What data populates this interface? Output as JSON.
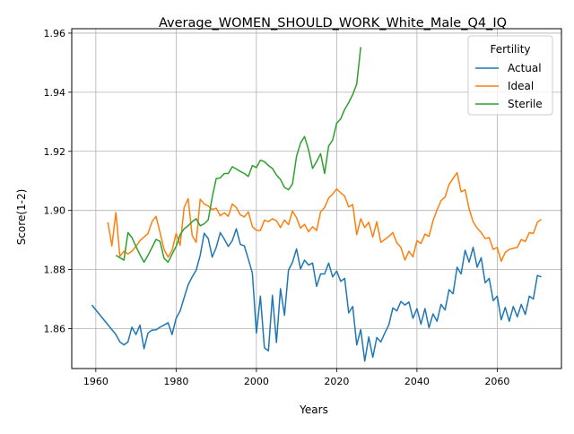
{
  "chart_data": {
    "type": "line",
    "title": "Average_WOMEN_SHOULD_WORK_White_Male_Q4_IQ",
    "xlabel": "Years",
    "ylabel": "Score(1-2)",
    "xlim": [
      1954,
      2076
    ],
    "ylim": [
      1.8465,
      1.9615
    ],
    "xticks": [
      1960,
      1980,
      2000,
      2020,
      2040,
      2060
    ],
    "yticks": [
      1.86,
      1.88,
      1.9,
      1.92,
      1.94,
      1.96
    ],
    "ytick_labels": [
      "1.86",
      "1.88",
      "1.90",
      "1.92",
      "1.94",
      "1.96"
    ],
    "grid": true,
    "legend": {
      "title": "Fertility",
      "placement": "top-right"
    },
    "series": [
      {
        "name": "Actual",
        "color": "#1f77b4",
        "points": [
          [
            1959,
            1.868
          ],
          [
            1962,
            1.863
          ],
          [
            1965,
            1.858
          ],
          [
            1966,
            1.8555
          ],
          [
            1967,
            1.8545
          ],
          [
            1968,
            1.8555
          ],
          [
            1969,
            1.8605
          ],
          [
            1970,
            1.858
          ],
          [
            1971,
            1.8612
          ],
          [
            1972,
            1.8532
          ],
          [
            1973,
            1.8585
          ],
          [
            1974,
            1.8595
          ],
          [
            1975,
            1.8596
          ],
          [
            1976,
            1.8605
          ],
          [
            1977,
            1.8612
          ],
          [
            1978,
            1.862
          ],
          [
            1979,
            1.858
          ],
          [
            1980,
            1.8635
          ],
          [
            1981,
            1.866
          ],
          [
            1982,
            1.8705
          ],
          [
            1983,
            1.8748
          ],
          [
            1984,
            1.8775
          ],
          [
            1985,
            1.8798
          ],
          [
            1986,
            1.8848
          ],
          [
            1987,
            1.8923
          ],
          [
            1988,
            1.8905
          ],
          [
            1989,
            1.8842
          ],
          [
            1990,
            1.8875
          ],
          [
            1991,
            1.8925
          ],
          [
            1992,
            1.8903
          ],
          [
            1993,
            1.8878
          ],
          [
            1994,
            1.8898
          ],
          [
            1995,
            1.8938
          ],
          [
            1996,
            1.8885
          ],
          [
            1997,
            1.888
          ],
          [
            1998,
            1.8835
          ],
          [
            1999,
            1.8788
          ],
          [
            2000,
            1.8585
          ],
          [
            2001,
            1.871
          ],
          [
            2002,
            1.8535
          ],
          [
            2003,
            1.8525
          ],
          [
            2004,
            1.8713
          ],
          [
            2005,
            1.8553
          ],
          [
            2006,
            1.8735
          ],
          [
            2007,
            1.8645
          ],
          [
            2008,
            1.8798
          ],
          [
            2009,
            1.8825
          ],
          [
            2010,
            1.887
          ],
          [
            2011,
            1.8802
          ],
          [
            2012,
            1.8832
          ],
          [
            2013,
            1.8815
          ],
          [
            2014,
            1.8822
          ],
          [
            2015,
            1.8743
          ],
          [
            2016,
            1.8785
          ],
          [
            2017,
            1.8785
          ],
          [
            2018,
            1.8822
          ],
          [
            2019,
            1.8775
          ],
          [
            2020,
            1.8795
          ],
          [
            2021,
            1.876
          ],
          [
            2022,
            1.877
          ],
          [
            2023,
            1.8653
          ],
          [
            2024,
            1.8675
          ],
          [
            2025,
            1.8545
          ],
          [
            2026,
            1.8597
          ],
          [
            2027,
            1.849
          ],
          [
            2028,
            1.8572
          ],
          [
            2029,
            1.8503
          ],
          [
            2030,
            1.857
          ],
          [
            2031,
            1.8555
          ],
          [
            2032,
            1.8585
          ],
          [
            2033,
            1.8613
          ],
          [
            2034,
            1.867
          ],
          [
            2035,
            1.866
          ],
          [
            2036,
            1.8692
          ],
          [
            2037,
            1.868
          ],
          [
            2038,
            1.869
          ],
          [
            2039,
            1.8635
          ],
          [
            2040,
            1.8668
          ],
          [
            2041,
            1.8615
          ],
          [
            2042,
            1.8668
          ],
          [
            2043,
            1.8603
          ],
          [
            2044,
            1.865
          ],
          [
            2045,
            1.8625
          ],
          [
            2046,
            1.8682
          ],
          [
            2047,
            1.8663
          ],
          [
            2048,
            1.8732
          ],
          [
            2049,
            1.8718
          ],
          [
            2050,
            1.8808
          ],
          [
            2051,
            1.8785
          ],
          [
            2052,
            1.8865
          ],
          [
            2053,
            1.8825
          ],
          [
            2054,
            1.8875
          ],
          [
            2055,
            1.8808
          ],
          [
            2056,
            1.884
          ],
          [
            2057,
            1.8755
          ],
          [
            2058,
            1.877
          ],
          [
            2059,
            1.8695
          ],
          [
            2060,
            1.871
          ],
          [
            2061,
            1.863
          ],
          [
            2062,
            1.8672
          ],
          [
            2063,
            1.8625
          ],
          [
            2064,
            1.8675
          ],
          [
            2065,
            1.864
          ],
          [
            2066,
            1.8682
          ],
          [
            2067,
            1.8648
          ],
          [
            2068,
            1.871
          ],
          [
            2069,
            1.87
          ],
          [
            2070,
            1.878
          ],
          [
            2071,
            1.8775
          ]
        ]
      },
      {
        "name": "Ideal",
        "color": "#ff7f0e",
        "points": [
          [
            1963,
            1.896
          ],
          [
            1964,
            1.888
          ],
          [
            1965,
            1.8993
          ],
          [
            1966,
            1.8845
          ],
          [
            1967,
            1.8862
          ],
          [
            1968,
            1.8853
          ],
          [
            1969,
            1.8862
          ],
          [
            1970,
            1.8878
          ],
          [
            1971,
            1.8898
          ],
          [
            1972,
            1.891
          ],
          [
            1973,
            1.8922
          ],
          [
            1974,
            1.8962
          ],
          [
            1975,
            1.898
          ],
          [
            1976,
            1.8925
          ],
          [
            1977,
            1.8868
          ],
          [
            1978,
            1.8842
          ],
          [
            1979,
            1.8865
          ],
          [
            1980,
            1.8922
          ],
          [
            1981,
            1.8882
          ],
          [
            1982,
            1.901
          ],
          [
            1983,
            1.904
          ],
          [
            1984,
            1.8915
          ],
          [
            1985,
            1.8892
          ],
          [
            1986,
            1.9038
          ],
          [
            1987,
            1.9022
          ],
          [
            1988,
            1.9015
          ],
          [
            1989,
            1.9003
          ],
          [
            1990,
            1.9008
          ],
          [
            1991,
            1.8982
          ],
          [
            1992,
            1.8992
          ],
          [
            1993,
            1.898
          ],
          [
            1994,
            1.9022
          ],
          [
            1995,
            1.901
          ],
          [
            1996,
            1.8985
          ],
          [
            1997,
            1.8978
          ],
          [
            1998,
            1.8995
          ],
          [
            1999,
            1.8945
          ],
          [
            2000,
            1.8933
          ],
          [
            2001,
            1.8932
          ],
          [
            2002,
            1.8967
          ],
          [
            2003,
            1.8962
          ],
          [
            2004,
            1.8972
          ],
          [
            2005,
            1.8965
          ],
          [
            2006,
            1.8942
          ],
          [
            2007,
            1.8968
          ],
          [
            2008,
            1.8952
          ],
          [
            2009,
            1.8998
          ],
          [
            2010,
            1.8975
          ],
          [
            2011,
            1.894
          ],
          [
            2012,
            1.8953
          ],
          [
            2013,
            1.8928
          ],
          [
            2014,
            1.8945
          ],
          [
            2015,
            1.8932
          ],
          [
            2016,
            1.8995
          ],
          [
            2017,
            1.901
          ],
          [
            2018,
            1.9042
          ],
          [
            2019,
            1.9055
          ],
          [
            2020,
            1.9073
          ],
          [
            2021,
            1.906
          ],
          [
            2022,
            1.9048
          ],
          [
            2023,
            1.9012
          ],
          [
            2024,
            1.902
          ],
          [
            2025,
            1.8918
          ],
          [
            2026,
            1.8972
          ],
          [
            2027,
            1.8942
          ],
          [
            2028,
            1.896
          ],
          [
            2029,
            1.891
          ],
          [
            2030,
            1.8962
          ],
          [
            2031,
            1.8892
          ],
          [
            2032,
            1.8902
          ],
          [
            2033,
            1.8912
          ],
          [
            2034,
            1.8925
          ],
          [
            2035,
            1.889
          ],
          [
            2036,
            1.8875
          ],
          [
            2037,
            1.8832
          ],
          [
            2038,
            1.8862
          ],
          [
            2039,
            1.8843
          ],
          [
            2040,
            1.8898
          ],
          [
            2041,
            1.8888
          ],
          [
            2042,
            1.892
          ],
          [
            2043,
            1.8912
          ],
          [
            2044,
            1.8965
          ],
          [
            2045,
            1.9002
          ],
          [
            2046,
            1.9033
          ],
          [
            2047,
            1.9045
          ],
          [
            2048,
            1.9088
          ],
          [
            2049,
            1.9108
          ],
          [
            2050,
            1.9128
          ],
          [
            2051,
            1.9063
          ],
          [
            2052,
            1.907
          ],
          [
            2053,
            1.9005
          ],
          [
            2054,
            1.8962
          ],
          [
            2055,
            1.894
          ],
          [
            2056,
            1.8925
          ],
          [
            2057,
            1.8905
          ],
          [
            2058,
            1.8908
          ],
          [
            2059,
            1.8868
          ],
          [
            2060,
            1.8875
          ],
          [
            2061,
            1.8828
          ],
          [
            2062,
            1.8858
          ],
          [
            2063,
            1.8868
          ],
          [
            2064,
            1.8872
          ],
          [
            2065,
            1.8875
          ],
          [
            2066,
            1.8902
          ],
          [
            2067,
            1.8895
          ],
          [
            2068,
            1.8925
          ],
          [
            2069,
            1.8922
          ],
          [
            2070,
            1.896
          ],
          [
            2071,
            1.897
          ]
        ]
      },
      {
        "name": "Sterile",
        "color": "#2ca02c",
        "points": [
          [
            1965,
            1.8848
          ],
          [
            1966,
            1.884
          ],
          [
            1967,
            1.8832
          ],
          [
            1968,
            1.8925
          ],
          [
            1969,
            1.8908
          ],
          [
            1970,
            1.8878
          ],
          [
            1971,
            1.885
          ],
          [
            1972,
            1.8825
          ],
          [
            1973,
            1.8848
          ],
          [
            1974,
            1.8875
          ],
          [
            1975,
            1.8902
          ],
          [
            1976,
            1.8895
          ],
          [
            1977,
            1.8838
          ],
          [
            1978,
            1.8825
          ],
          [
            1979,
            1.8852
          ],
          [
            1980,
            1.8878
          ],
          [
            1981,
            1.8918
          ],
          [
            1982,
            1.8938
          ],
          [
            1983,
            1.8948
          ],
          [
            1984,
            1.8962
          ],
          [
            1985,
            1.8972
          ],
          [
            1986,
            1.8948
          ],
          [
            1987,
            1.8955
          ],
          [
            1988,
            1.8968
          ],
          [
            1989,
            1.9045
          ],
          [
            1990,
            1.9108
          ],
          [
            1991,
            1.911
          ],
          [
            1992,
            1.9125
          ],
          [
            1993,
            1.9125
          ],
          [
            1994,
            1.9148
          ],
          [
            1995,
            1.914
          ],
          [
            1996,
            1.9132
          ],
          [
            1997,
            1.9125
          ],
          [
            1998,
            1.9115
          ],
          [
            1999,
            1.9152
          ],
          [
            2000,
            1.9145
          ],
          [
            2001,
            1.917
          ],
          [
            2002,
            1.9165
          ],
          [
            2003,
            1.9152
          ],
          [
            2004,
            1.9142
          ],
          [
            2005,
            1.912
          ],
          [
            2006,
            1.9105
          ],
          [
            2007,
            1.9078
          ],
          [
            2008,
            1.907
          ],
          [
            2009,
            1.909
          ],
          [
            2010,
            1.9183
          ],
          [
            2011,
            1.9228
          ],
          [
            2012,
            1.925
          ],
          [
            2013,
            1.9205
          ],
          [
            2014,
            1.9142
          ],
          [
            2015,
            1.9165
          ],
          [
            2016,
            1.9192
          ],
          [
            2017,
            1.9125
          ],
          [
            2018,
            1.9218
          ],
          [
            2019,
            1.9238
          ],
          [
            2020,
            1.9295
          ],
          [
            2021,
            1.931
          ],
          [
            2022,
            1.9342
          ],
          [
            2023,
            1.9365
          ],
          [
            2024,
            1.9392
          ],
          [
            2025,
            1.9428
          ],
          [
            2026,
            1.9553
          ]
        ]
      }
    ]
  }
}
